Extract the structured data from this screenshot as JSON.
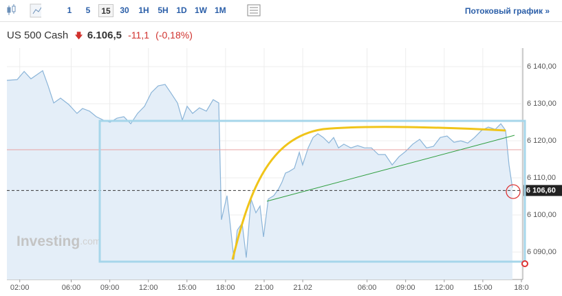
{
  "toolbar": {
    "intervals": [
      {
        "label": "1"
      },
      {
        "label": "5"
      },
      {
        "label": "15",
        "active": true
      },
      {
        "label": "30"
      },
      {
        "label": "1H"
      },
      {
        "label": "5H"
      },
      {
        "label": "1D"
      },
      {
        "label": "1W"
      },
      {
        "label": "1M"
      }
    ],
    "link": "Потоковый график »"
  },
  "header": {
    "name": "US 500 Cash",
    "price": "6.106,5",
    "change": "-11,1",
    "change_pct": "(-0,18%)"
  },
  "watermark": {
    "brand": "Investing",
    "suffix": ".com"
  },
  "chart_data": {
    "type": "line",
    "color": "#8ab4d8",
    "fill": "#e4eef8",
    "x": [
      0,
      0.8,
      1.34,
      1.87,
      2.41,
      2.78,
      3.21,
      3.64,
      4.17,
      4.81,
      5.45,
      5.88,
      6.42,
      6.95,
      7.49,
      8.02,
      8.56,
      9.09,
      9.63,
      10.16,
      10.7,
      11.23,
      11.76,
      12.3,
      12.73,
      13.26,
      13.64,
      14.01,
      14.44,
      14.97,
      15.51,
      16.04,
      16.47,
      16.68,
      17.11,
      17.38,
      17.65,
      17.91,
      18.29,
      18.61,
      18.98,
      19.36,
      19.68,
      19.95,
      20.32,
      20.75,
      21.12,
      21.39,
      21.66,
      21.93,
      22.35,
      22.73,
      22.99,
      23.42,
      23.8,
      24.17,
      24.6,
      25.03,
      25.4,
      25.78,
      26.2,
      26.74,
      27.27,
      27.81,
      28.34,
      28.88,
      29.41,
      29.95,
      30.48,
      31.02,
      31.55,
      32.09,
      32.62,
      33.16,
      33.69,
      34.22,
      34.76,
      35.29,
      35.83,
      36.36,
      36.9,
      37.43,
      37.97,
      38.4,
      38.77,
      39.04,
      39.3
    ],
    "values": [
      6136.3,
      6136.5,
      6138.7,
      6136.7,
      6138.0,
      6138.9,
      6134.8,
      6130.2,
      6131.5,
      6129.8,
      6127.4,
      6128.7,
      6128.0,
      6126.5,
      6125.6,
      6125.0,
      6126.1,
      6126.5,
      6124.6,
      6127.4,
      6129.3,
      6133.0,
      6134.8,
      6135.2,
      6133.0,
      6130.2,
      6125.6,
      6129.3,
      6127.4,
      6128.9,
      6128.0,
      6131.1,
      6130.2,
      6098.7,
      6105.2,
      6096.9,
      6088.0,
      6095.9,
      6097.8,
      6088.5,
      6104.3,
      6100.6,
      6102.4,
      6094.1,
      6104.3,
      6105.2,
      6107.0,
      6108.9,
      6111.3,
      6111.7,
      6112.6,
      6116.9,
      6113.5,
      6118.1,
      6120.9,
      6121.9,
      6120.9,
      6119.4,
      6120.9,
      6118.1,
      6119.1,
      6118.1,
      6118.7,
      6118.1,
      6118.1,
      6116.3,
      6116.3,
      6113.5,
      6115.7,
      6117.2,
      6119.1,
      6120.4,
      6118.1,
      6118.5,
      6120.9,
      6121.3,
      6119.6,
      6120.0,
      6119.4,
      6120.9,
      6122.8,
      6123.7,
      6123.1,
      6124.6,
      6122.8,
      6113.5,
      6107.4
    ],
    "xlim": [
      0,
      40
    ],
    "xticks": [
      {
        "value": 1,
        "label": "02:00"
      },
      {
        "value": 5,
        "label": "06:00"
      },
      {
        "value": 8,
        "label": "09:00"
      },
      {
        "value": 11,
        "label": "12:00"
      },
      {
        "value": 14,
        "label": "15:00"
      },
      {
        "value": 17,
        "label": "18:00"
      },
      {
        "value": 20,
        "label": "21:00"
      },
      {
        "value": 23,
        "label": "21.02"
      },
      {
        "value": 28,
        "label": "06:00"
      },
      {
        "value": 31,
        "label": "09:00"
      },
      {
        "value": 34,
        "label": "12:00"
      },
      {
        "value": 37,
        "label": "15:00"
      },
      {
        "value": 40,
        "label": "18:0"
      }
    ],
    "ylim": [
      6082.6,
      6145
    ],
    "yticks": [
      {
        "value": 6090,
        "label": "6 090,00"
      },
      {
        "value": 6100,
        "label": "6 100,00"
      },
      {
        "value": 6110,
        "label": "6 110,00"
      },
      {
        "value": 6120,
        "label": "6 120,00"
      },
      {
        "value": 6130,
        "label": "6 130,00"
      },
      {
        "value": 6140,
        "label": "6 140,00"
      }
    ],
    "grid": true,
    "prev_close": 6117.6,
    "last_price": {
      "value": 6106.6,
      "label": "6 106,60"
    }
  }
}
